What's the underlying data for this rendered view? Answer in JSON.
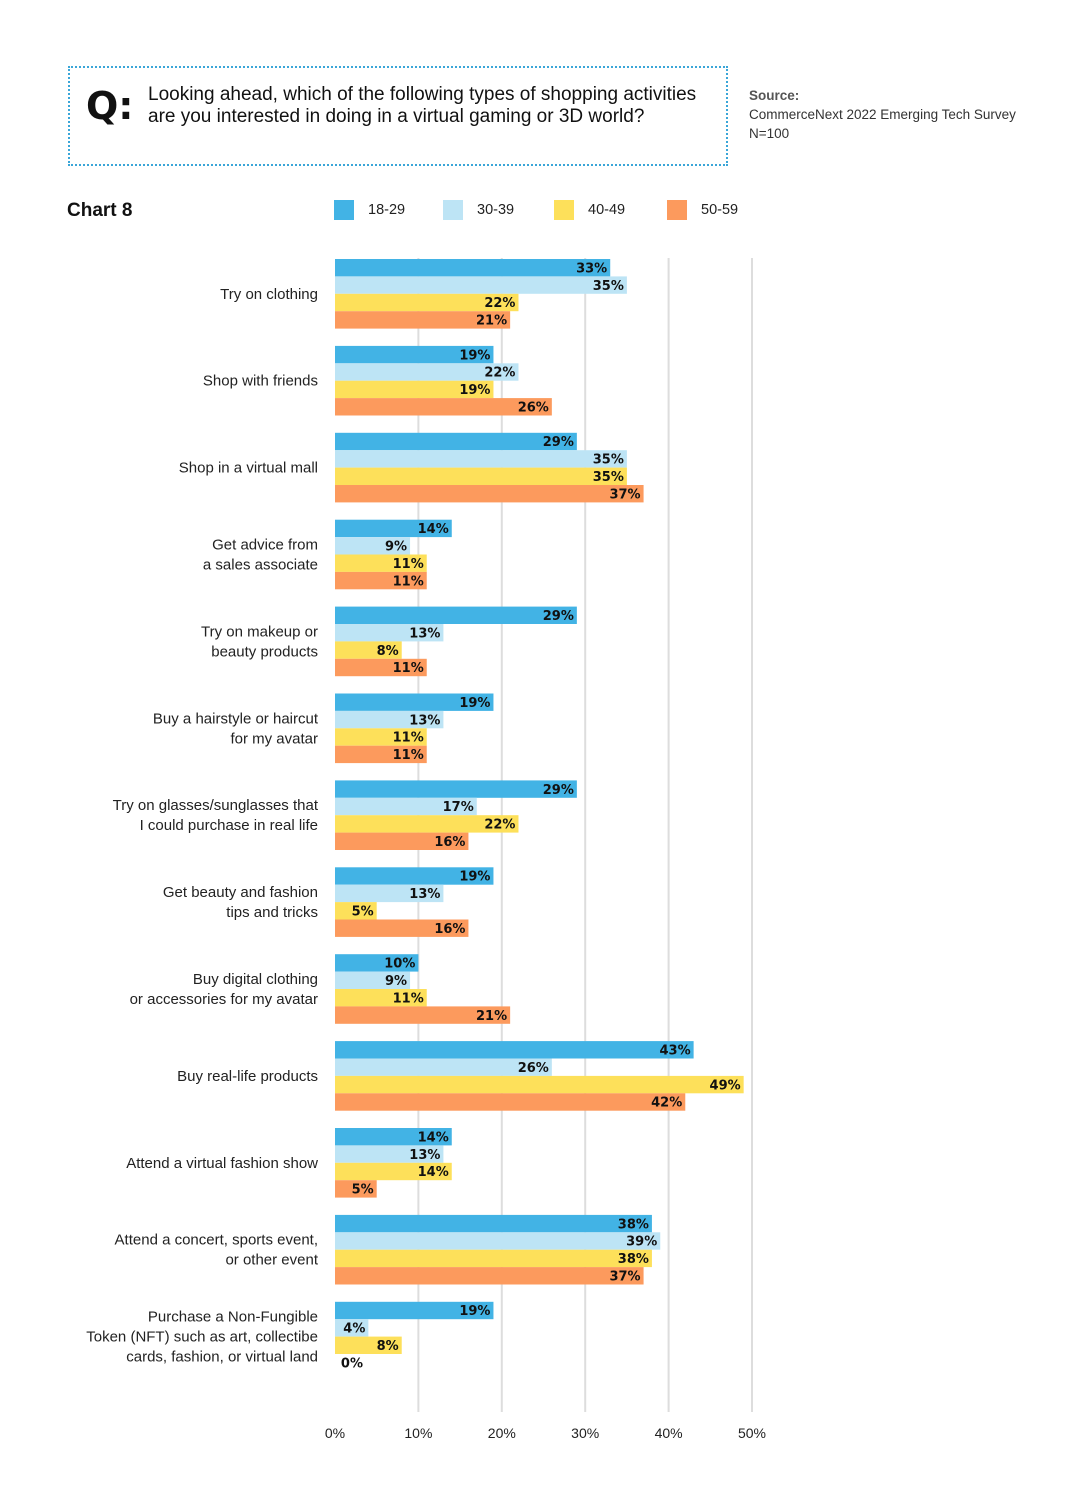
{
  "header": {
    "q_mark": "Q:",
    "question": "Looking ahead, which of the following types of shopping activities are you interested in doing in a virtual gaming or 3D world?",
    "source_label": "Source:",
    "source_text": "CommerceNext 2022 Emerging Tech Survey",
    "sample": "N=100"
  },
  "chart_title": "Chart 8",
  "colors": {
    "18-29": "#42b3e5",
    "30-39": "#bde4f5",
    "40-49": "#fde05a",
    "50-59": "#fc9a5d",
    "grid": "#dddddd"
  },
  "chart_data": {
    "type": "bar",
    "orientation": "horizontal",
    "categories": [
      [
        "Try on clothing"
      ],
      [
        "Shop with friends"
      ],
      [
        "Shop in a virtual mall"
      ],
      [
        "Get advice from",
        "a sales associate"
      ],
      [
        "Try on makeup or",
        "beauty products"
      ],
      [
        "Buy a hairstyle or haircut",
        "for my avatar"
      ],
      [
        "Try on glasses/sunglasses that",
        "I could purchase in real life"
      ],
      [
        "Get beauty and fashion",
        "tips and tricks"
      ],
      [
        "Buy digital clothing",
        "or accessories for my avatar"
      ],
      [
        "Buy real-life products"
      ],
      [
        "Attend a virtual fashion show"
      ],
      [
        "Attend a concert, sports event,",
        "or other event"
      ],
      [
        "Purchase a Non-Fungible",
        "Token (NFT) such as art, collectibe",
        "cards, fashion, or virtual land"
      ]
    ],
    "series": [
      {
        "name": "18-29",
        "values": [
          33,
          19,
          29,
          14,
          29,
          19,
          29,
          19,
          10,
          43,
          14,
          38,
          19
        ]
      },
      {
        "name": "30-39",
        "values": [
          35,
          22,
          35,
          9,
          13,
          13,
          17,
          13,
          9,
          26,
          13,
          39,
          4
        ]
      },
      {
        "name": "40-49",
        "values": [
          22,
          19,
          35,
          11,
          8,
          11,
          22,
          5,
          11,
          49,
          14,
          38,
          8
        ]
      },
      {
        "name": "50-59",
        "values": [
          21,
          26,
          37,
          11,
          11,
          11,
          16,
          16,
          21,
          42,
          5,
          37,
          0
        ]
      }
    ],
    "xlim": [
      0,
      50
    ],
    "ticks": [
      0,
      10,
      20,
      30,
      40,
      50
    ],
    "tick_suffix": "%",
    "value_suffix": "%",
    "legend_position": "top",
    "grid": true
  }
}
